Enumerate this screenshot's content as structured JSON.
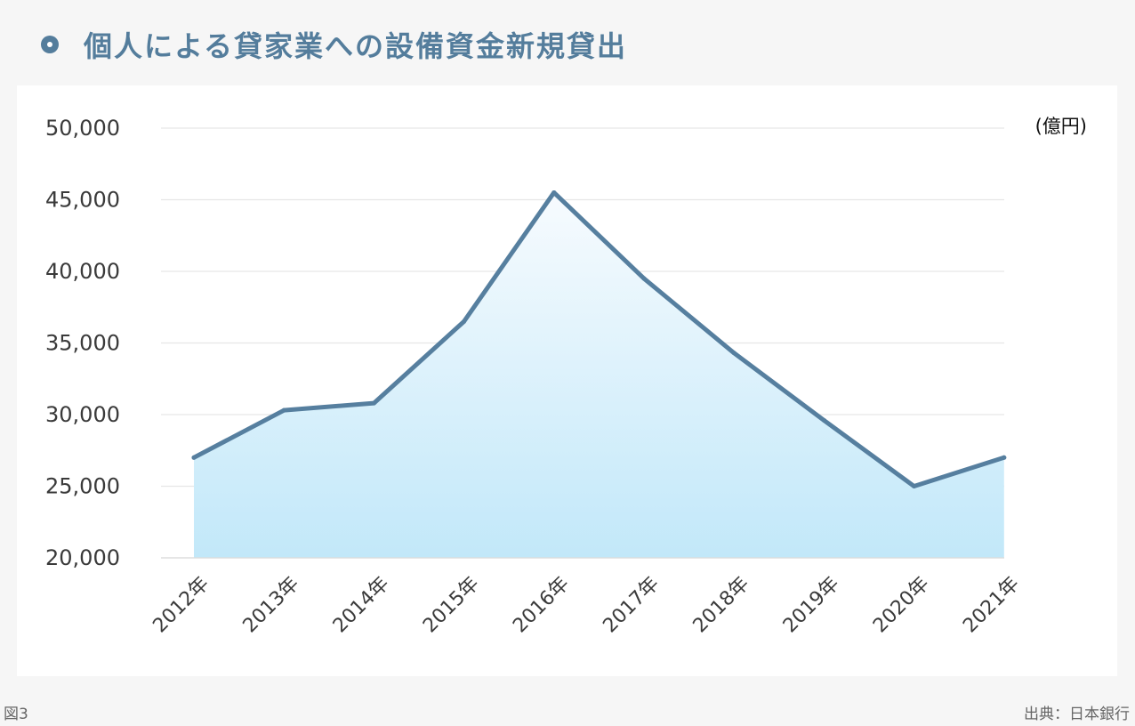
{
  "title": "個人による貸家業への設備資金新規貸出",
  "figure_label": "図3",
  "source": "出典：日本銀行",
  "colors": {
    "accent": "#547d9c",
    "line": "#567f9f",
    "fill_top": "#f7fbfe",
    "fill_bottom": "#c2e8f9",
    "grid": "#e6e6e6",
    "axis_text": "#3a3a3a"
  },
  "chart_data": {
    "type": "area",
    "title": "個人による貸家業への設備資金新規貸出",
    "unit_label": "(億円)",
    "categories": [
      "2012年",
      "2013年",
      "2014年",
      "2015年",
      "2016年",
      "2017年",
      "2018年",
      "2019年",
      "2020年",
      "2021年"
    ],
    "values": [
      27000,
      30300,
      30800,
      36500,
      45500,
      39500,
      34300,
      29600,
      25000,
      27000
    ],
    "ylim": [
      20000,
      50000
    ],
    "yticks": [
      "20,000",
      "25,000",
      "30,000",
      "35,000",
      "40,000",
      "45,000",
      "50,000"
    ],
    "ytick_values": [
      20000,
      25000,
      30000,
      35000,
      40000,
      45000,
      50000
    ],
    "grid": true,
    "legend": "none"
  }
}
